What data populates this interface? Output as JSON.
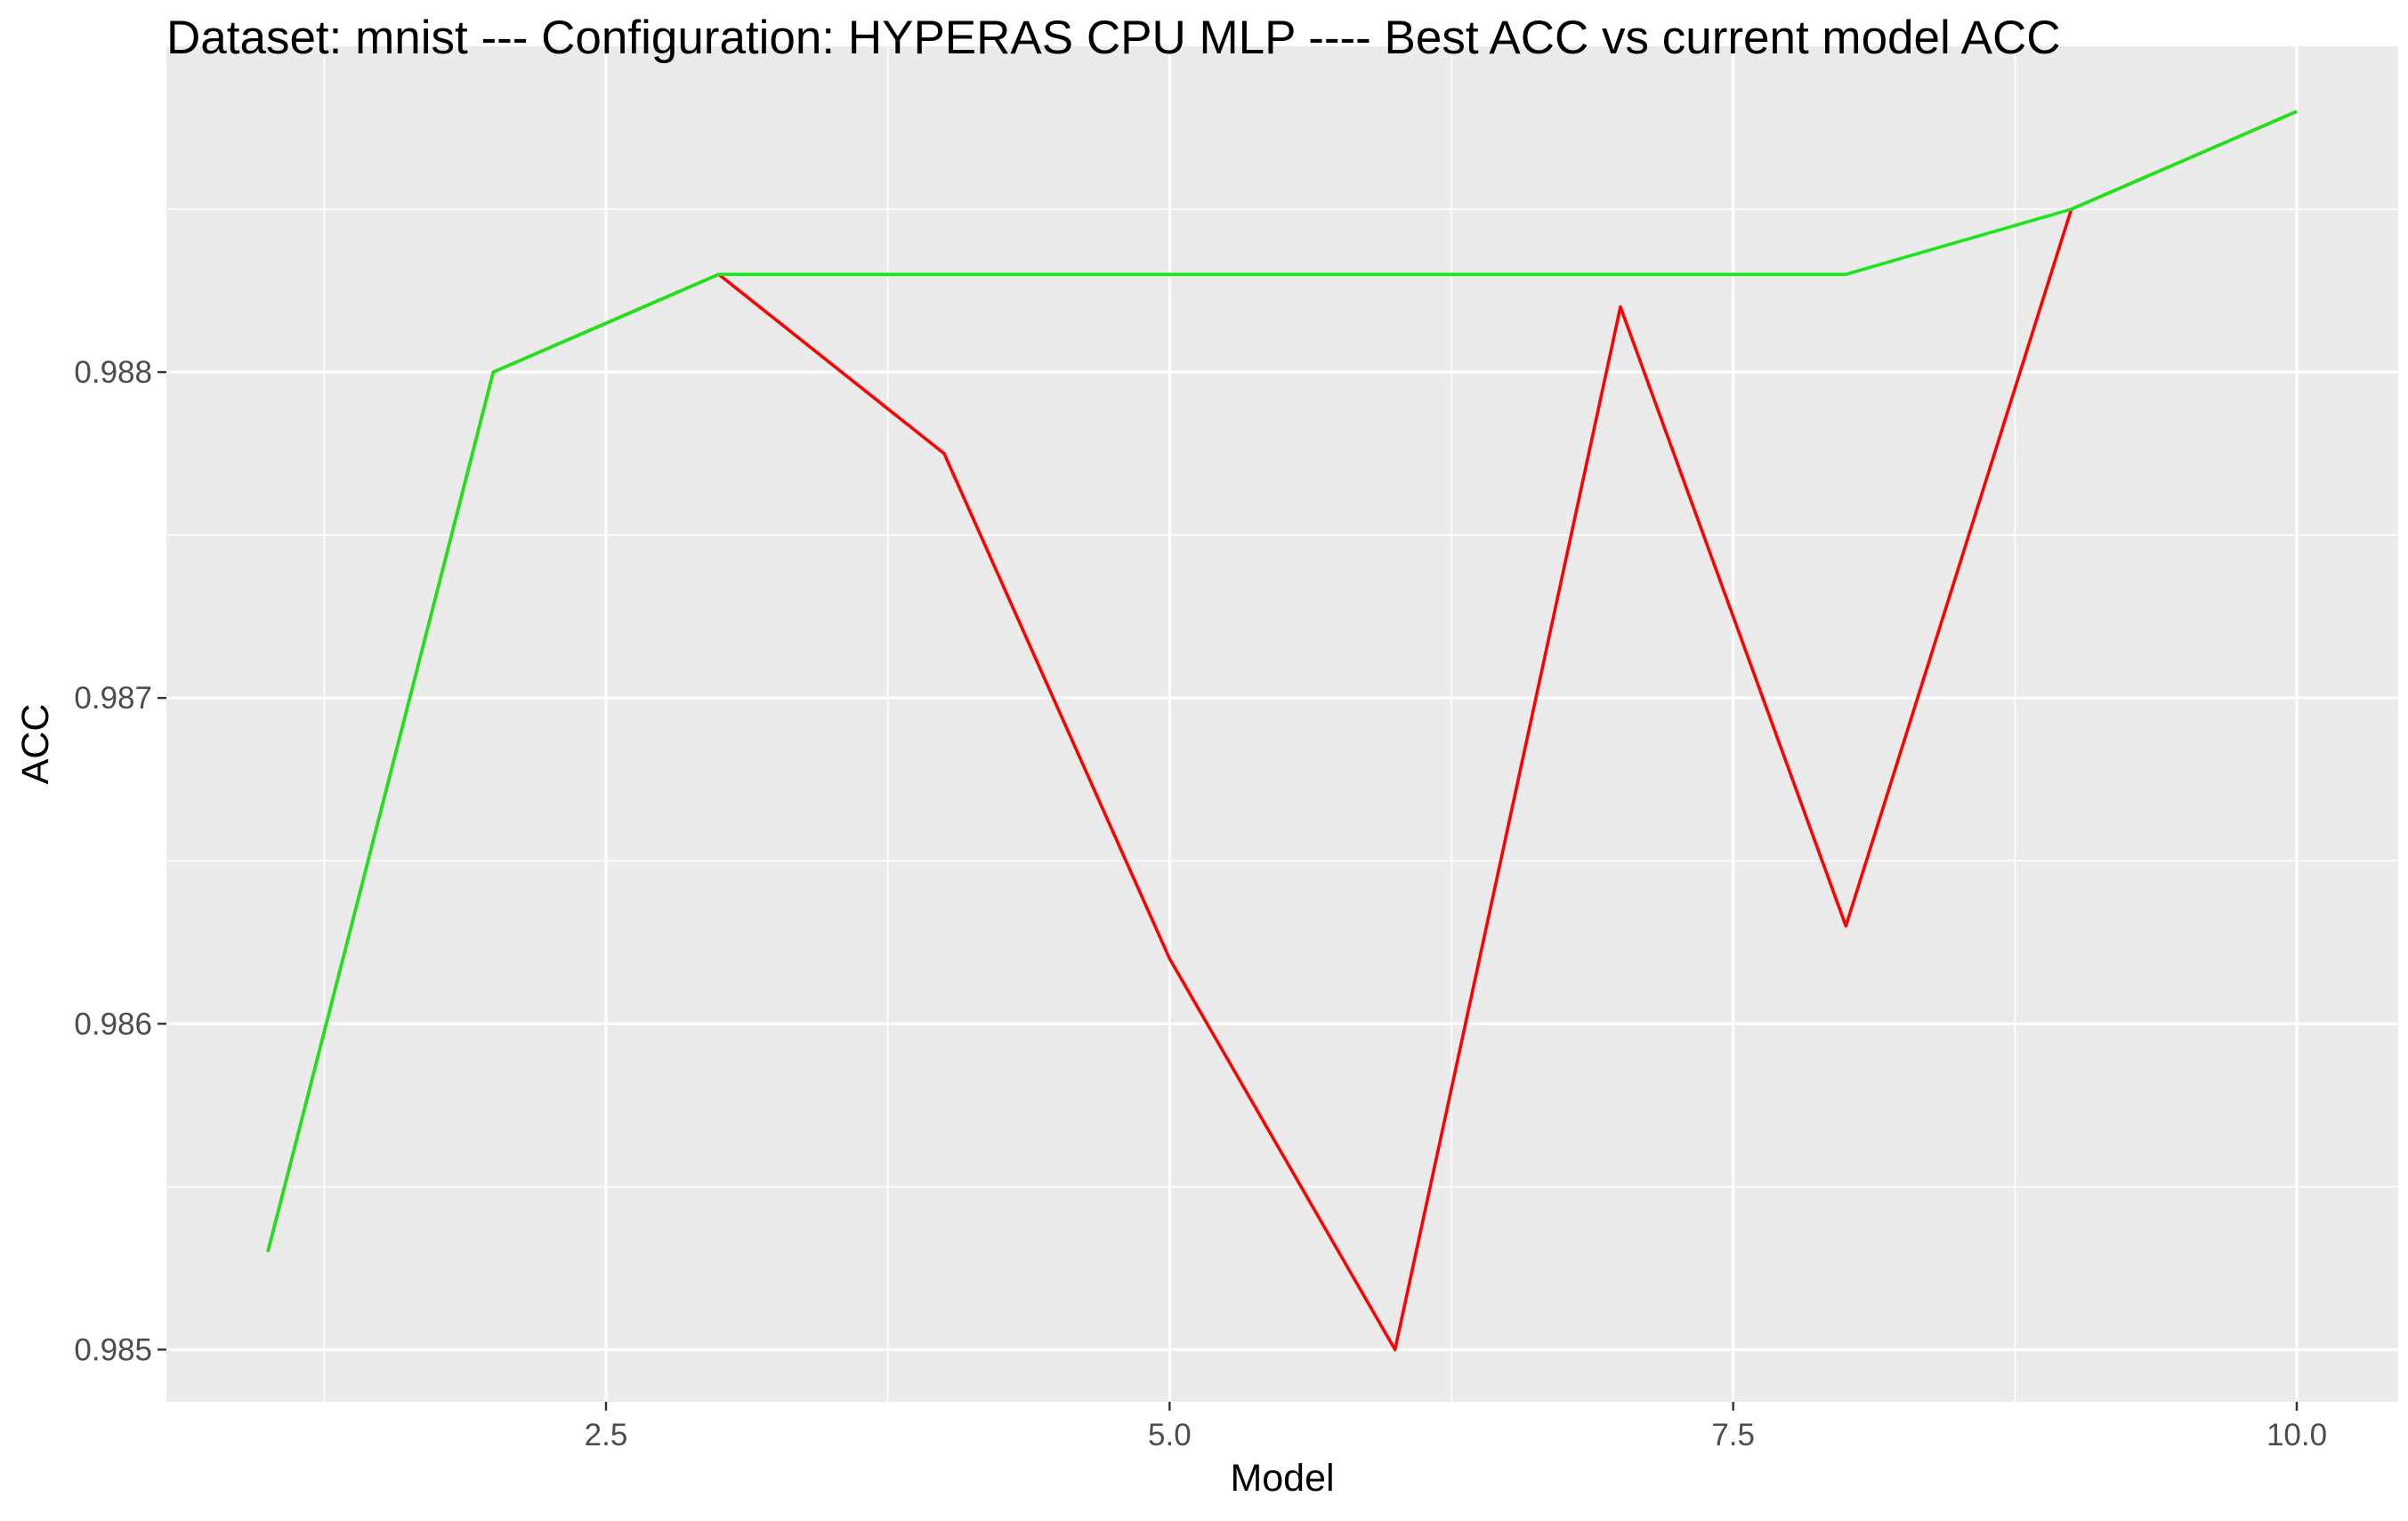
{
  "chart_data": {
    "type": "line",
    "title": "Dataset:  mnist  --- Configuration:  HYPERAS CPU MLP  ---- Best ACC vs current model ACC",
    "xlabel": "Model",
    "ylabel": "ACC",
    "xlim": [
      0.55,
      10.45
    ],
    "ylim": [
      0.98484,
      0.989
    ],
    "x_ticks": [
      2.5,
      5.0,
      7.5,
      10.0
    ],
    "x_tick_labels": [
      "2.5",
      "5.0",
      "7.5",
      "10.0"
    ],
    "y_ticks": [
      0.985,
      0.986,
      0.987,
      0.988
    ],
    "y_tick_labels": [
      "0.985",
      "0.986",
      "0.987",
      "0.988"
    ],
    "grid": true,
    "legend": "none",
    "series": [
      {
        "color": "#ff0000",
        "x": [
          1,
          2,
          3,
          4,
          5,
          6,
          7,
          8,
          9,
          10
        ],
        "values": [
          0.9853,
          0.988,
          0.9883,
          0.98775,
          0.9862,
          0.985,
          0.9882,
          0.9863,
          0.9885,
          0.9888
        ]
      },
      {
        "color": "#19e619",
        "x": [
          1,
          2,
          3,
          4,
          5,
          6,
          7,
          8,
          9,
          10
        ],
        "values": [
          0.9853,
          0.988,
          0.9883,
          0.9883,
          0.9883,
          0.9883,
          0.9883,
          0.9883,
          0.9885,
          0.9888
        ]
      }
    ]
  }
}
